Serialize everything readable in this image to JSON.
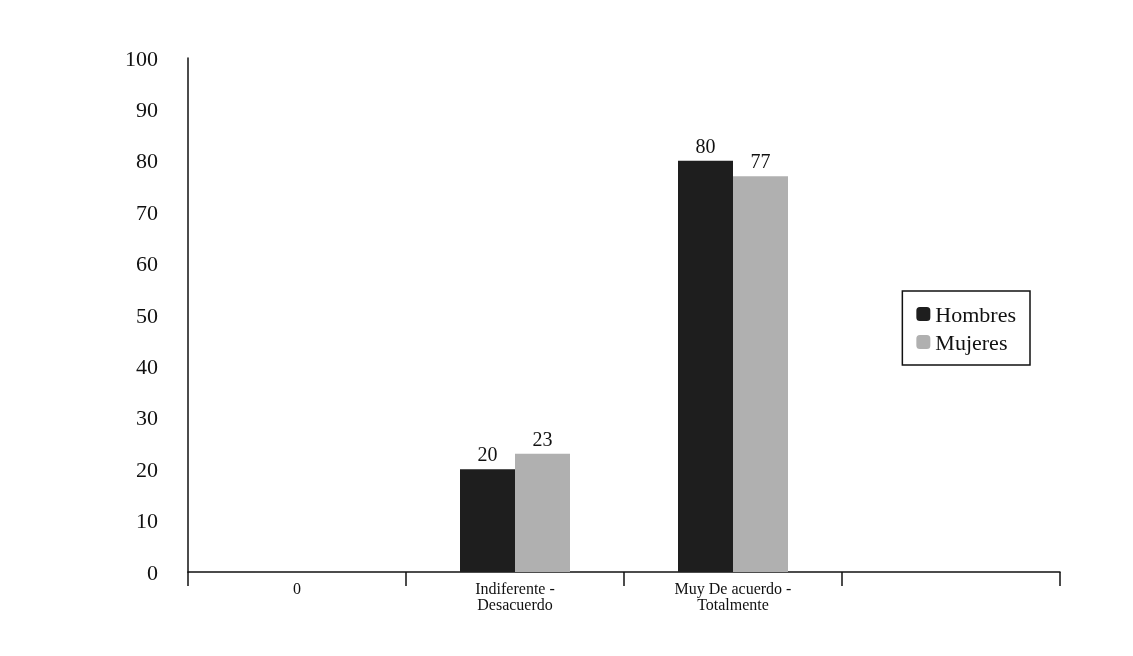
{
  "chart_data": {
    "type": "bar",
    "categories": [
      "0",
      "Indiferente - Desacuerdo",
      "Muy De acuerdo - Totalmente",
      null
    ],
    "series": [
      {
        "name": "Hombres",
        "color": "#1e1e1e",
        "values": [
          null,
          20,
          80,
          null
        ]
      },
      {
        "name": "Mujeres",
        "color": "#b0b0b0",
        "values": [
          null,
          23,
          77,
          null
        ]
      }
    ],
    "ylim": [
      0,
      100
    ],
    "yticks": [
      0,
      10,
      20,
      30,
      40,
      50,
      60,
      70,
      80,
      90,
      100
    ],
    "grid": false,
    "legend": "right",
    "data_labels": true
  }
}
